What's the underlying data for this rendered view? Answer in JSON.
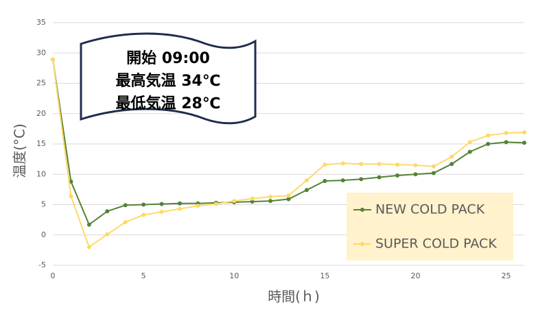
{
  "chart_data": {
    "type": "line",
    "annotation": [
      "開始 09:00",
      "最高気温 34℃",
      "最低気温 28℃"
    ],
    "x_label": "時間(ｈ)",
    "y_label": "温度(°C)",
    "x": [
      0,
      1,
      2,
      3,
      4,
      5,
      6,
      7,
      8,
      9,
      10,
      11,
      12,
      13,
      14,
      15,
      16,
      17,
      18,
      19,
      20,
      21,
      22,
      23,
      24,
      25,
      26
    ],
    "series": [
      {
        "name": "NEW COLD PACK",
        "color": "#548235",
        "values": [
          28.9,
          8.8,
          1.7,
          3.9,
          4.9,
          5.0,
          5.1,
          5.2,
          5.2,
          5.3,
          5.4,
          5.5,
          5.6,
          5.9,
          7.4,
          8.9,
          9.0,
          9.2,
          9.5,
          9.8,
          10.0,
          10.2,
          11.7,
          13.7,
          15.0,
          15.3,
          15.2
        ]
      },
      {
        "name": "SUPER COLD PACK",
        "color": "#ffd966",
        "values": [
          28.9,
          6.4,
          -2.0,
          0.1,
          2.1,
          3.3,
          3.8,
          4.3,
          4.8,
          5.1,
          5.6,
          6.0,
          6.3,
          6.5,
          9.0,
          11.6,
          11.8,
          11.7,
          11.7,
          11.6,
          11.5,
          11.3,
          12.9,
          15.3,
          16.4,
          16.8,
          16.9
        ]
      }
    ],
    "xlim": [
      0,
      26
    ],
    "xticks": [
      0,
      5,
      10,
      15,
      20,
      25
    ],
    "ylim": [
      -5,
      35
    ],
    "yticks": [
      -5,
      0,
      5,
      10,
      15,
      20,
      25,
      30,
      35
    ],
    "grid": true,
    "legend": "lower right"
  }
}
